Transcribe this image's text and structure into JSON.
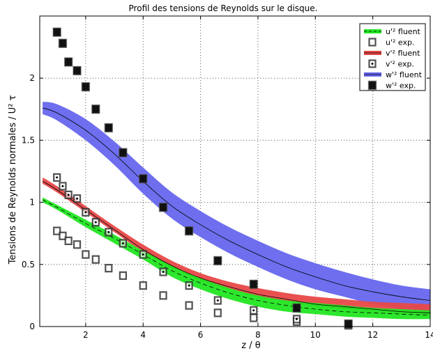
{
  "chart_data": {
    "type": "line",
    "title": "Profil des tensions de Reynolds sur le disque.",
    "xlabel": "z / θ",
    "ylabel": "Tensions de Reynolds normales / U² τ",
    "xlim": [
      0.4,
      14
    ],
    "ylim": [
      0,
      2.5
    ],
    "xticks": [
      2,
      4,
      6,
      8,
      10,
      12,
      14
    ],
    "xtick_labels": [
      "2",
      "4",
      "6",
      "8",
      "10",
      "12",
      "14"
    ],
    "yticks": [
      0,
      0.5,
      1,
      1.5,
      2
    ],
    "ytick_labels": [
      "0",
      "0.5",
      "1",
      "1.5",
      "2"
    ],
    "grid": true,
    "legend_position": "top-right",
    "series": [
      {
        "name": "u'² fluent",
        "kind": "band",
        "color": "#22e622",
        "line_style": "dashed",
        "x": [
          0.5,
          1,
          2,
          3,
          4,
          5,
          6,
          7,
          8,
          9,
          10,
          11,
          12,
          13,
          14
        ],
        "center": [
          1.02,
          0.96,
          0.83,
          0.71,
          0.58,
          0.45,
          0.35,
          0.27,
          0.21,
          0.17,
          0.14,
          0.12,
          0.11,
          0.1,
          0.09
        ],
        "lower": [
          1.0,
          0.94,
          0.8,
          0.67,
          0.54,
          0.4,
          0.3,
          0.22,
          0.16,
          0.12,
          0.1,
          0.08,
          0.07,
          0.06,
          0.06
        ],
        "upper": [
          1.04,
          0.98,
          0.86,
          0.74,
          0.61,
          0.49,
          0.39,
          0.31,
          0.25,
          0.21,
          0.19,
          0.17,
          0.15,
          0.14,
          0.13
        ]
      },
      {
        "name": "u'² exp.",
        "kind": "markers",
        "marker": "open-square",
        "color": "#000000",
        "x": [
          1.0,
          1.2,
          1.4,
          1.7,
          2.0,
          2.35,
          2.8,
          3.3,
          4.0,
          4.7,
          5.6,
          6.6,
          7.85,
          9.35,
          11.15
        ],
        "y": [
          0.77,
          0.73,
          0.69,
          0.66,
          0.58,
          0.54,
          0.47,
          0.41,
          0.33,
          0.25,
          0.17,
          0.11,
          0.07,
          0.04,
          0.01
        ]
      },
      {
        "name": "v'² fluent",
        "kind": "band",
        "color": "#e84848",
        "line_style": "solid",
        "x": [
          0.5,
          1,
          2,
          3,
          4,
          5,
          6,
          7,
          8,
          9,
          10,
          11,
          12,
          13,
          14
        ],
        "center": [
          1.17,
          1.1,
          0.94,
          0.78,
          0.62,
          0.49,
          0.39,
          0.32,
          0.26,
          0.22,
          0.18,
          0.16,
          0.14,
          0.12,
          0.11
        ],
        "lower": [
          1.15,
          1.08,
          0.92,
          0.76,
          0.6,
          0.47,
          0.37,
          0.3,
          0.24,
          0.2,
          0.16,
          0.14,
          0.12,
          0.1,
          0.09
        ],
        "upper": [
          1.2,
          1.13,
          0.97,
          0.81,
          0.66,
          0.53,
          0.43,
          0.36,
          0.31,
          0.27,
          0.24,
          0.22,
          0.2,
          0.19,
          0.18
        ]
      },
      {
        "name": "v'² exp.",
        "kind": "markers",
        "marker": "dotted-square",
        "color": "#000000",
        "x": [
          1.0,
          1.2,
          1.4,
          1.7,
          2.0,
          2.35,
          2.8,
          3.3,
          4.0,
          4.7,
          5.6,
          6.6,
          7.85,
          9.35,
          11.15
        ],
        "y": [
          1.2,
          1.13,
          1.06,
          1.03,
          0.92,
          0.84,
          0.76,
          0.67,
          0.58,
          0.44,
          0.33,
          0.21,
          0.13,
          0.06,
          0.02
        ]
      },
      {
        "name": "w'² fluent",
        "kind": "band",
        "color": "#6666ee",
        "line_style": "solid",
        "x": [
          0.5,
          1,
          2,
          3,
          4,
          5,
          6,
          7,
          8,
          9,
          10,
          11,
          12,
          13,
          14
        ],
        "center": [
          1.76,
          1.72,
          1.58,
          1.39,
          1.17,
          0.97,
          0.82,
          0.69,
          0.58,
          0.48,
          0.4,
          0.33,
          0.28,
          0.24,
          0.21
        ],
        "lower": [
          1.71,
          1.66,
          1.5,
          1.3,
          1.07,
          0.87,
          0.72,
          0.59,
          0.48,
          0.38,
          0.3,
          0.24,
          0.18,
          0.14,
          0.11
        ],
        "upper": [
          1.81,
          1.79,
          1.67,
          1.49,
          1.28,
          1.08,
          0.93,
          0.8,
          0.69,
          0.59,
          0.51,
          0.44,
          0.38,
          0.33,
          0.3
        ]
      },
      {
        "name": "w'² exp.",
        "kind": "markers",
        "marker": "filled-square",
        "color": "#111111",
        "x": [
          1.0,
          1.2,
          1.4,
          1.7,
          2.0,
          2.35,
          2.8,
          3.3,
          4.0,
          4.7,
          5.6,
          6.6,
          7.85,
          9.35,
          11.15
        ],
        "y": [
          2.37,
          2.28,
          2.13,
          2.06,
          1.93,
          1.75,
          1.6,
          1.4,
          1.19,
          0.96,
          0.77,
          0.53,
          0.34,
          0.15,
          0.02
        ]
      }
    ]
  }
}
